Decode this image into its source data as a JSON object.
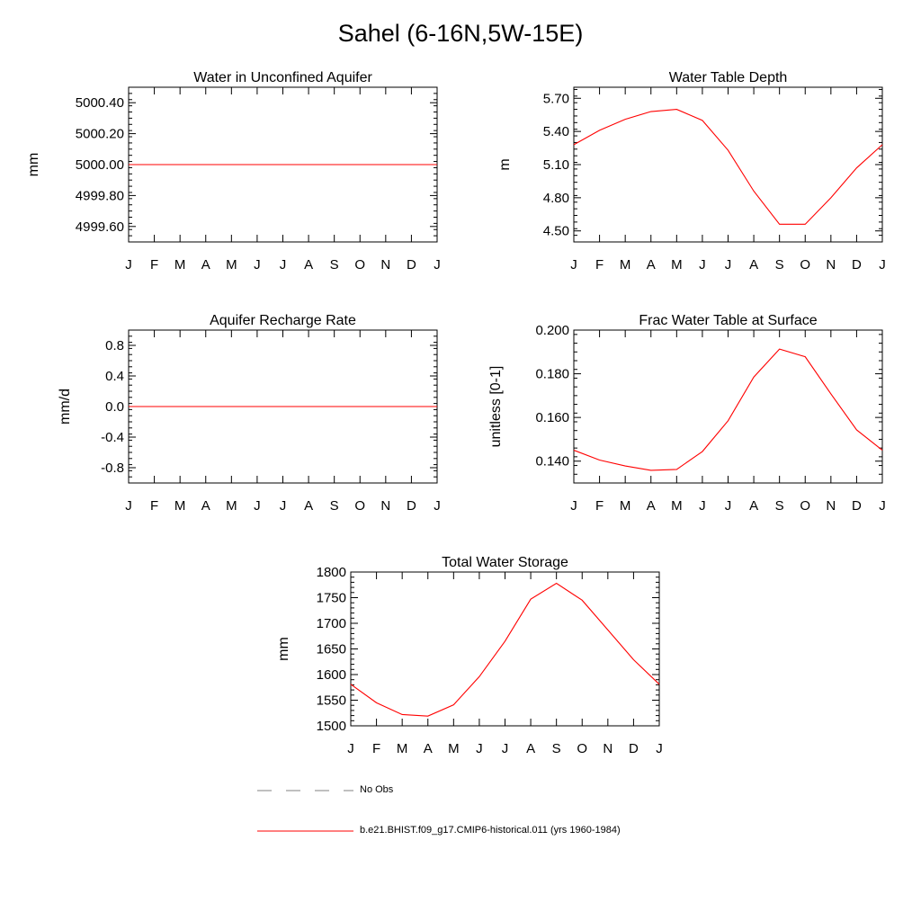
{
  "figure": {
    "title": "Sahel (6-16N,5W-15E)",
    "line_color": "#ff0000",
    "obs_color": "#808080"
  },
  "legend": {
    "obs_label": "No Obs",
    "model_label": "b.e21.BHIST.f09_g17.CMIP6-historical.011 (yrs 1960-1984)"
  },
  "chart_data": [
    {
      "id": "unconfined",
      "type": "line",
      "title": "Water in Unconfined Aquifer",
      "ylabel": "mm",
      "xlabel": "",
      "categories": [
        "J",
        "F",
        "M",
        "A",
        "M",
        "J",
        "J",
        "A",
        "S",
        "O",
        "N",
        "D",
        "J"
      ],
      "ylim": [
        4999.5,
        5000.5
      ],
      "yticks": [
        4999.6,
        4999.8,
        5000.0,
        5000.2,
        5000.4
      ],
      "ytick_labels": [
        "4999.60",
        "4999.80",
        "5000.00",
        "5000.20",
        "5000.40"
      ],
      "series": [
        {
          "values": [
            5000,
            5000,
            5000,
            5000,
            5000,
            5000,
            5000,
            5000,
            5000,
            5000,
            5000,
            5000,
            5000
          ]
        }
      ]
    },
    {
      "id": "wtdepth",
      "type": "line",
      "title": "Water Table Depth",
      "ylabel": "m",
      "xlabel": "",
      "categories": [
        "J",
        "F",
        "M",
        "A",
        "M",
        "J",
        "J",
        "A",
        "S",
        "O",
        "N",
        "D",
        "J"
      ],
      "ylim": [
        4.4,
        5.8
      ],
      "yticks": [
        4.5,
        4.8,
        5.1,
        5.4,
        5.7
      ],
      "ytick_labels": [
        "4.50",
        "4.80",
        "5.10",
        "5.40",
        "5.70"
      ],
      "series": [
        {
          "values": [
            5.28,
            5.41,
            5.51,
            5.58,
            5.6,
            5.5,
            5.23,
            4.86,
            4.56,
            4.56,
            4.8,
            5.07,
            5.28
          ]
        }
      ]
    },
    {
      "id": "recharge",
      "type": "line",
      "title": "Aquifer Recharge Rate",
      "ylabel": "mm/d",
      "xlabel": "",
      "categories": [
        "J",
        "F",
        "M",
        "A",
        "M",
        "J",
        "J",
        "A",
        "S",
        "O",
        "N",
        "D",
        "J"
      ],
      "ylim": [
        -1.0,
        1.0
      ],
      "yticks": [
        -0.8,
        -0.4,
        0.0,
        0.4,
        0.8
      ],
      "ytick_labels": [
        "-0.8",
        "-0.4",
        "0.0",
        "0.4",
        "0.8"
      ],
      "series": [
        {
          "values": [
            0,
            0,
            0,
            0,
            0,
            0,
            0,
            0,
            0,
            0,
            0,
            0,
            0
          ]
        }
      ]
    },
    {
      "id": "fracwt",
      "type": "line",
      "title": "Frac Water Table at Surface",
      "ylabel": "unitless [0-1]",
      "xlabel": "",
      "categories": [
        "J",
        "F",
        "M",
        "A",
        "M",
        "J",
        "J",
        "A",
        "S",
        "O",
        "N",
        "D",
        "J"
      ],
      "ylim": [
        0.13,
        0.2
      ],
      "yticks": [
        0.14,
        0.16,
        0.18,
        0.2
      ],
      "ytick_labels": [
        "0.140",
        "0.160",
        "0.180",
        "0.200"
      ],
      "series": [
        {
          "values": [
            0.145,
            0.1405,
            0.1378,
            0.1358,
            0.1362,
            0.1444,
            0.1585,
            0.1785,
            0.1913,
            0.1878,
            0.1708,
            0.1543,
            0.145
          ]
        }
      ]
    },
    {
      "id": "tws",
      "type": "line",
      "title": "Total Water Storage",
      "ylabel": "mm",
      "xlabel": "",
      "categories": [
        "J",
        "F",
        "M",
        "A",
        "M",
        "J",
        "J",
        "A",
        "S",
        "O",
        "N",
        "D",
        "J"
      ],
      "ylim": [
        1500,
        1800
      ],
      "yticks": [
        1500,
        1550,
        1600,
        1650,
        1700,
        1750,
        1800
      ],
      "ytick_labels": [
        "1500",
        "1550",
        "1600",
        "1650",
        "1700",
        "1750",
        "1800"
      ],
      "series": [
        {
          "values": [
            1581,
            1545,
            1522,
            1519,
            1541,
            1596,
            1665,
            1747,
            1778,
            1745,
            1687,
            1629,
            1581
          ]
        }
      ]
    }
  ]
}
